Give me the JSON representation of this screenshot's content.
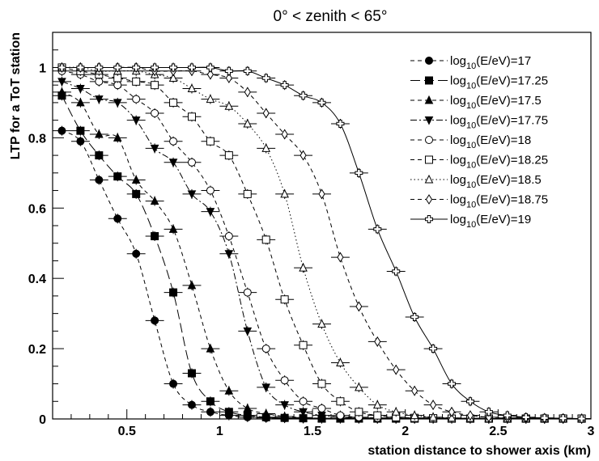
{
  "chart_data": {
    "type": "scatter",
    "title": "0° < zenith < 65°",
    "xlabel": "station distance to shower axis (km)",
    "ylabel": "LTP for a ToT station",
    "xlim": [
      0.1,
      3.0
    ],
    "ylim": [
      0,
      1.1
    ],
    "x_ticks": [
      {
        "value": 0.5,
        "label": "0.5"
      },
      {
        "value": 1.0,
        "label": "1"
      },
      {
        "value": 1.5,
        "label": "1.5"
      },
      {
        "value": 2.0,
        "label": "2"
      },
      {
        "value": 2.5,
        "label": "2.5"
      },
      {
        "value": 3.0,
        "label": "3"
      }
    ],
    "y_ticks": [
      {
        "value": 0,
        "label": "0"
      },
      {
        "value": 0.2,
        "label": "0.2"
      },
      {
        "value": 0.4,
        "label": "0.4"
      },
      {
        "value": 0.6,
        "label": "0.6"
      },
      {
        "value": 0.8,
        "label": "0.8"
      },
      {
        "value": 1.0,
        "label": "1"
      }
    ],
    "grid": false,
    "legend_position": "top-right",
    "x": [
      0.15,
      0.25,
      0.35,
      0.45,
      0.55,
      0.65,
      0.75,
      0.85,
      0.95,
      1.05,
      1.15,
      1.25,
      1.35,
      1.45,
      1.55,
      1.65,
      1.75,
      1.85,
      1.95,
      2.05,
      2.15,
      2.25,
      2.35,
      2.45,
      2.55,
      2.65,
      2.75,
      2.85,
      2.95
    ],
    "series": [
      {
        "name_main": "log",
        "name_sub": "10",
        "name_rest": "(E/eV)=17",
        "marker": "filled-circle",
        "line": "dashed",
        "values": [
          0.82,
          0.79,
          0.68,
          0.57,
          0.47,
          0.28,
          0.1,
          0.04,
          0.02,
          0.01,
          0.005,
          0.003,
          0.002,
          0.001,
          0.001,
          0.001,
          0.001,
          0.001,
          0.001,
          0.001,
          0.001,
          0.001,
          0.001,
          0.001,
          0.001,
          0.001,
          0.001,
          0.001,
          0.001
        ]
      },
      {
        "name_main": "log",
        "name_sub": "10",
        "name_rest": "(E/eV)=17.25",
        "marker": "filled-square",
        "line": "longdash",
        "values": [
          0.92,
          0.82,
          0.75,
          0.69,
          0.64,
          0.52,
          0.36,
          0.13,
          0.05,
          0.02,
          0.01,
          0.005,
          0.003,
          0.002,
          0.001,
          0.001,
          0.001,
          0.001,
          0.001,
          0.001,
          0.001,
          0.001,
          0.001,
          0.001,
          0.001,
          0.001,
          0.001,
          0.001,
          0.001
        ]
      },
      {
        "name_main": "log",
        "name_sub": "10",
        "name_rest": "(E/eV)=17.5",
        "marker": "filled-triangle-up",
        "line": "dashed",
        "values": [
          0.93,
          0.9,
          0.81,
          0.8,
          0.68,
          0.62,
          0.54,
          0.38,
          0.2,
          0.08,
          0.03,
          0.015,
          0.007,
          0.004,
          0.002,
          0.001,
          0.001,
          0.001,
          0.001,
          0.001,
          0.001,
          0.001,
          0.001,
          0.001,
          0.001,
          0.001,
          0.001,
          0.001,
          0.001
        ]
      },
      {
        "name_main": "log",
        "name_sub": "10",
        "name_rest": "(E/eV)=17.75",
        "marker": "filled-triangle-down",
        "line": "dashdot",
        "values": [
          0.96,
          0.94,
          0.91,
          0.9,
          0.85,
          0.77,
          0.73,
          0.64,
          0.59,
          0.47,
          0.25,
          0.09,
          0.04,
          0.02,
          0.01,
          0.005,
          0.002,
          0.001,
          0.001,
          0.001,
          0.001,
          0.001,
          0.001,
          0.001,
          0.001,
          0.001,
          0.001,
          0.001,
          0.001
        ]
      },
      {
        "name_main": "log",
        "name_sub": "10",
        "name_rest": "(E/eV)=18",
        "marker": "open-circle",
        "line": "dashed",
        "values": [
          0.99,
          0.98,
          0.96,
          0.95,
          0.91,
          0.87,
          0.79,
          0.73,
          0.65,
          0.52,
          0.36,
          0.2,
          0.11,
          0.05,
          0.03,
          0.01,
          0.005,
          0.003,
          0.002,
          0.001,
          0.001,
          0.001,
          0.001,
          0.001,
          0.001,
          0.001,
          0.001,
          0.001,
          0.001
        ]
      },
      {
        "name_main": "log",
        "name_sub": "10",
        "name_rest": "(E/eV)=18.25",
        "marker": "open-square",
        "line": "dashed",
        "values": [
          1.0,
          0.99,
          0.98,
          0.97,
          0.96,
          0.95,
          0.9,
          0.86,
          0.79,
          0.75,
          0.64,
          0.51,
          0.34,
          0.21,
          0.1,
          0.05,
          0.02,
          0.01,
          0.005,
          0.003,
          0.002,
          0.001,
          0.001,
          0.001,
          0.001,
          0.001,
          0.001,
          0.001,
          0.001
        ]
      },
      {
        "name_main": "log",
        "name_sub": "10",
        "name_rest": "(E/eV)=18.5",
        "marker": "open-triangle-up",
        "line": "dotted",
        "values": [
          1.0,
          1.0,
          0.99,
          0.99,
          0.99,
          0.98,
          0.97,
          0.94,
          0.91,
          0.89,
          0.84,
          0.77,
          0.64,
          0.43,
          0.27,
          0.16,
          0.09,
          0.04,
          0.02,
          0.01,
          0.005,
          0.003,
          0.002,
          0.001,
          0.001,
          0.001,
          0.001,
          0.001,
          0.001
        ]
      },
      {
        "name_main": "log",
        "name_sub": "10",
        "name_rest": "(E/eV)=18.75",
        "marker": "open-diamond",
        "line": "dashed",
        "values": [
          1.0,
          1.0,
          1.0,
          1.0,
          1.0,
          0.99,
          0.99,
          0.99,
          0.98,
          0.97,
          0.93,
          0.87,
          0.81,
          0.75,
          0.64,
          0.46,
          0.32,
          0.22,
          0.14,
          0.08,
          0.04,
          0.02,
          0.01,
          0.005,
          0.003,
          0.002,
          0.001,
          0.001,
          0.001
        ]
      },
      {
        "name_main": "log",
        "name_sub": "10",
        "name_rest": "(E/eV)=19",
        "marker": "open-cross",
        "line": "solid",
        "values": [
          1.0,
          1.0,
          1.0,
          1.0,
          1.0,
          1.0,
          1.0,
          1.0,
          1.0,
          0.99,
          0.99,
          0.97,
          0.95,
          0.92,
          0.9,
          0.84,
          0.7,
          0.54,
          0.42,
          0.29,
          0.2,
          0.1,
          0.05,
          0.02,
          0.01,
          0.005,
          0.003,
          0.002,
          0.001
        ]
      }
    ]
  }
}
